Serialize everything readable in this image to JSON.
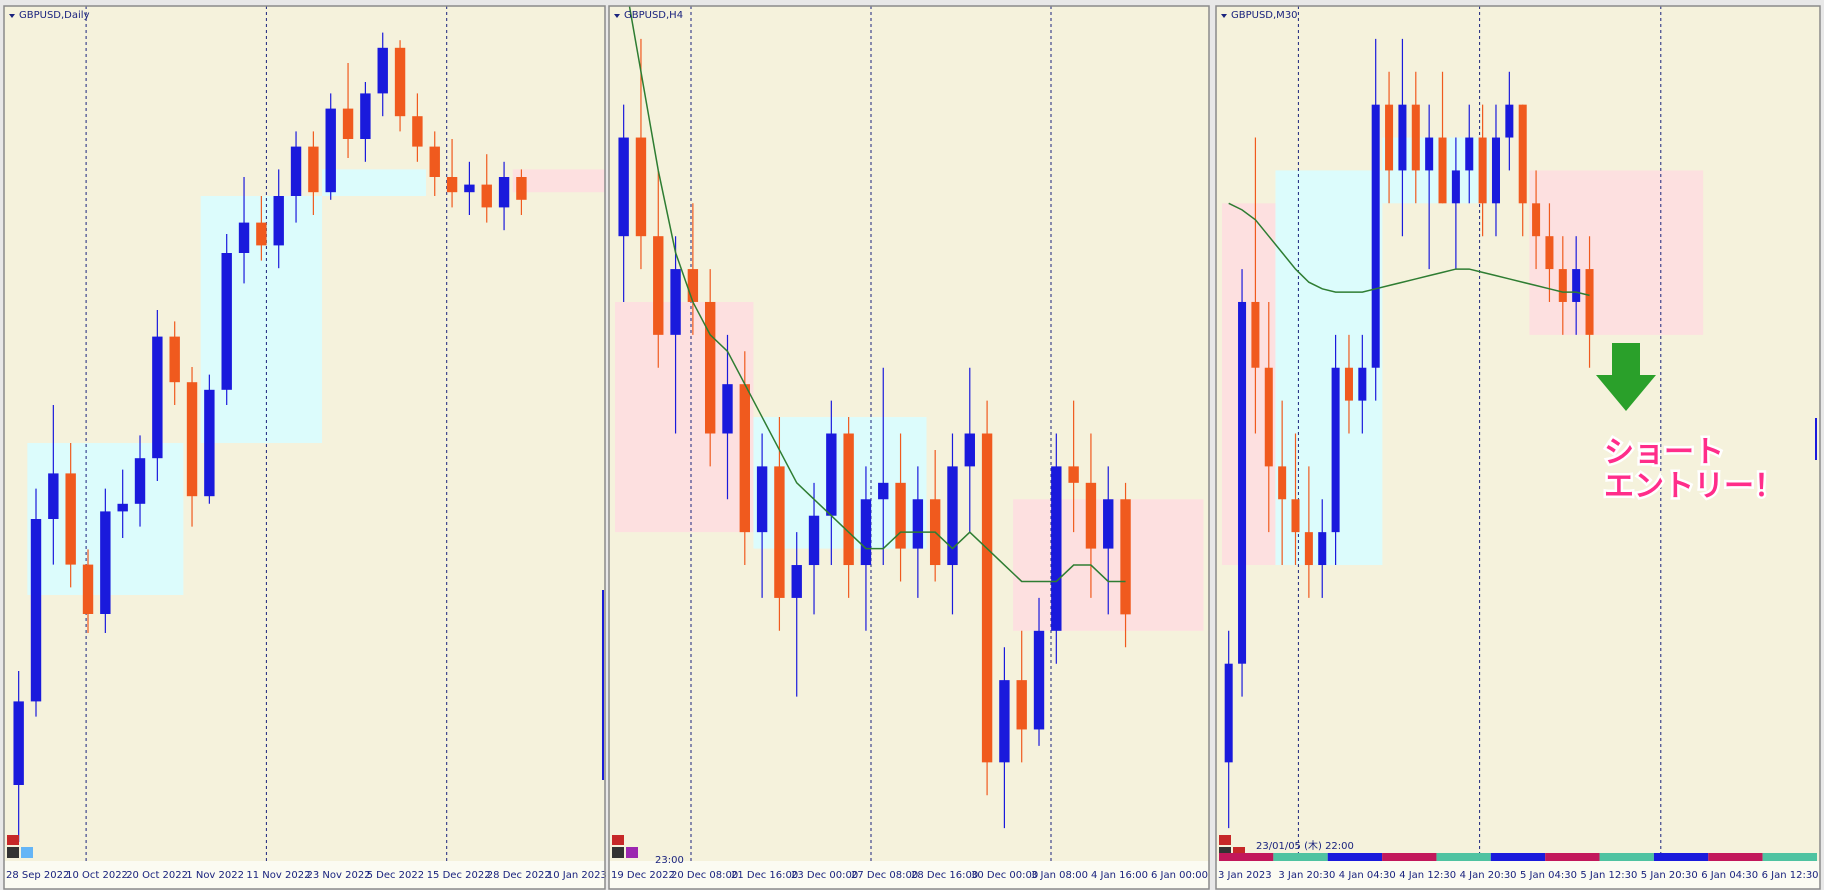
{
  "panels": [
    {
      "title": "GBPUSD,Daily",
      "ylim": [
        1.03,
        1.255
      ],
      "xlabels": [
        "28 Sep 2022",
        "10 Oct 2022",
        "20 Oct 2022",
        "1 Nov 2022",
        "11 Nov 2022",
        "23 Nov 2022",
        "5 Dec 2022",
        "15 Dec 2022",
        "28 Dec 2022",
        "10 Jan 2023"
      ],
      "candles": [
        [
          1.05,
          1.08,
          1.035,
          1.072
        ],
        [
          1.072,
          1.128,
          1.068,
          1.12
        ],
        [
          1.12,
          1.15,
          1.108,
          1.132
        ],
        [
          1.132,
          1.14,
          1.102,
          1.108
        ],
        [
          1.108,
          1.112,
          1.09,
          1.095
        ],
        [
          1.095,
          1.128,
          1.09,
          1.122
        ],
        [
          1.122,
          1.133,
          1.115,
          1.124
        ],
        [
          1.124,
          1.142,
          1.118,
          1.136
        ],
        [
          1.136,
          1.175,
          1.13,
          1.168
        ],
        [
          1.168,
          1.172,
          1.15,
          1.156
        ],
        [
          1.156,
          1.16,
          1.118,
          1.126
        ],
        [
          1.126,
          1.158,
          1.124,
          1.154
        ],
        [
          1.154,
          1.195,
          1.15,
          1.19
        ],
        [
          1.19,
          1.21,
          1.182,
          1.198
        ],
        [
          1.198,
          1.205,
          1.188,
          1.192
        ],
        [
          1.192,
          1.212,
          1.186,
          1.205
        ],
        [
          1.205,
          1.222,
          1.198,
          1.218
        ],
        [
          1.218,
          1.222,
          1.2,
          1.206
        ],
        [
          1.206,
          1.232,
          1.204,
          1.228
        ],
        [
          1.228,
          1.24,
          1.215,
          1.22
        ],
        [
          1.22,
          1.235,
          1.214,
          1.232
        ],
        [
          1.232,
          1.248,
          1.226,
          1.244
        ],
        [
          1.244,
          1.246,
          1.222,
          1.226
        ],
        [
          1.226,
          1.232,
          1.214,
          1.218
        ],
        [
          1.218,
          1.222,
          1.205,
          1.21
        ],
        [
          1.21,
          1.22,
          1.202,
          1.206
        ],
        [
          1.206,
          1.214,
          1.2,
          1.208
        ],
        [
          1.208,
          1.216,
          1.198,
          1.202
        ],
        [
          1.202,
          1.214,
          1.196,
          1.21
        ],
        [
          1.21,
          1.212,
          1.2,
          1.204
        ]
      ],
      "zones": [
        {
          "from": 1,
          "to": 9,
          "low": 1.1,
          "high": 1.14,
          "color": "#dcfcfc"
        },
        {
          "from": 11,
          "to": 17,
          "low": 1.14,
          "high": 1.205,
          "color": "#dcfcfc"
        },
        {
          "from": 18,
          "to": 23,
          "low": 1.205,
          "high": 1.212,
          "color": "#dcfcfc"
        },
        {
          "from": 29,
          "to": 34,
          "low": 1.206,
          "high": 1.212,
          "color": "#fde0e0"
        }
      ]
    },
    {
      "title": "GBPUSD,H4",
      "ylim": [
        1.18,
        1.232
      ],
      "time": "23:00",
      "xlabels": [
        "19 Dec 2022",
        "20 Dec 08:00",
        "21 Dec 16:00",
        "23 Dec 00:00",
        "27 Dec 08:00",
        "28 Dec 16:00",
        "30 Dec 00:00",
        "3 Jan 08:00",
        "4 Jan 16:00",
        "6 Jan 00:00"
      ],
      "candles": [
        [
          1.218,
          1.226,
          1.214,
          1.224
        ],
        [
          1.224,
          1.23,
          1.216,
          1.218
        ],
        [
          1.218,
          1.222,
          1.21,
          1.212
        ],
        [
          1.212,
          1.218,
          1.206,
          1.216
        ],
        [
          1.216,
          1.22,
          1.212,
          1.214
        ],
        [
          1.214,
          1.216,
          1.204,
          1.206
        ],
        [
          1.206,
          1.212,
          1.202,
          1.209
        ],
        [
          1.209,
          1.211,
          1.198,
          1.2
        ],
        [
          1.2,
          1.206,
          1.196,
          1.204
        ],
        [
          1.204,
          1.207,
          1.194,
          1.196
        ],
        [
          1.196,
          1.2,
          1.19,
          1.198
        ],
        [
          1.198,
          1.203,
          1.195,
          1.201
        ],
        [
          1.201,
          1.208,
          1.198,
          1.206
        ],
        [
          1.206,
          1.207,
          1.196,
          1.198
        ],
        [
          1.198,
          1.204,
          1.194,
          1.202
        ],
        [
          1.202,
          1.21,
          1.198,
          1.203
        ],
        [
          1.203,
          1.206,
          1.197,
          1.199
        ],
        [
          1.199,
          1.204,
          1.196,
          1.202
        ],
        [
          1.202,
          1.205,
          1.197,
          1.198
        ],
        [
          1.198,
          1.206,
          1.195,
          1.204
        ],
        [
          1.204,
          1.21,
          1.2,
          1.206
        ],
        [
          1.206,
          1.208,
          1.184,
          1.186
        ],
        [
          1.186,
          1.193,
          1.182,
          1.191
        ],
        [
          1.191,
          1.194,
          1.186,
          1.188
        ],
        [
          1.188,
          1.196,
          1.187,
          1.194
        ],
        [
          1.194,
          1.206,
          1.192,
          1.204
        ],
        [
          1.204,
          1.208,
          1.2,
          1.203
        ],
        [
          1.203,
          1.206,
          1.196,
          1.199
        ],
        [
          1.199,
          1.204,
          1.195,
          1.202
        ],
        [
          1.202,
          1.203,
          1.193,
          1.195
        ]
      ],
      "ma": [
        1.234,
        1.228,
        1.222,
        1.217,
        1.214,
        1.212,
        1.211,
        1.209,
        1.207,
        1.205,
        1.203,
        1.202,
        1.201,
        1.2,
        1.199,
        1.199,
        1.2,
        1.2,
        1.2,
        1.199,
        1.2,
        1.199,
        1.198,
        1.197,
        1.197,
        1.197,
        1.198,
        1.198,
        1.197,
        1.197
      ],
      "zones": [
        {
          "from": 0,
          "to": 7,
          "low": 1.2,
          "high": 1.214,
          "color": "#fde0e0"
        },
        {
          "from": 8,
          "to": 17,
          "low": 1.199,
          "high": 1.207,
          "color": "#dcfcfc"
        },
        {
          "from": 23,
          "to": 33,
          "low": 1.194,
          "high": 1.202,
          "color": "#fde0e0"
        }
      ]
    },
    {
      "title": "GBPUSD,M30",
      "ylim": [
        1.187,
        1.213
      ],
      "time": "23/01/05 (木) 22:00",
      "annotation": [
        "ショート",
        "エントリー！"
      ],
      "xlabels": [
        "3 Jan 2023",
        "3 Jan 20:30",
        "4 Jan 04:30",
        "4 Jan 12:30",
        "4 Jan 20:30",
        "5 Jan 04:30",
        "5 Jan 12:30",
        "5 Jan 20:30",
        "6 Jan 04:30",
        "6 Jan 12:30"
      ],
      "candles": [
        [
          1.19,
          1.194,
          1.188,
          1.193
        ],
        [
          1.193,
          1.205,
          1.192,
          1.204
        ],
        [
          1.204,
          1.209,
          1.2,
          1.202
        ],
        [
          1.202,
          1.204,
          1.197,
          1.199
        ],
        [
          1.199,
          1.201,
          1.196,
          1.198
        ],
        [
          1.198,
          1.2,
          1.196,
          1.197
        ],
        [
          1.197,
          1.199,
          1.195,
          1.196
        ],
        [
          1.196,
          1.198,
          1.195,
          1.197
        ],
        [
          1.197,
          1.203,
          1.196,
          1.202
        ],
        [
          1.202,
          1.203,
          1.2,
          1.201
        ],
        [
          1.201,
          1.203,
          1.2,
          1.202
        ],
        [
          1.202,
          1.212,
          1.201,
          1.21
        ],
        [
          1.21,
          1.211,
          1.207,
          1.208
        ],
        [
          1.208,
          1.212,
          1.206,
          1.21
        ],
        [
          1.21,
          1.211,
          1.207,
          1.208
        ],
        [
          1.208,
          1.21,
          1.205,
          1.209
        ],
        [
          1.209,
          1.211,
          1.207,
          1.207
        ],
        [
          1.207,
          1.209,
          1.205,
          1.208
        ],
        [
          1.208,
          1.21,
          1.207,
          1.209
        ],
        [
          1.209,
          1.21,
          1.206,
          1.207
        ],
        [
          1.207,
          1.21,
          1.206,
          1.209
        ],
        [
          1.209,
          1.211,
          1.208,
          1.21
        ],
        [
          1.21,
          1.21,
          1.206,
          1.207
        ],
        [
          1.207,
          1.208,
          1.205,
          1.206
        ],
        [
          1.206,
          1.207,
          1.204,
          1.205
        ],
        [
          1.205,
          1.206,
          1.203,
          1.204
        ],
        [
          1.204,
          1.206,
          1.203,
          1.205
        ],
        [
          1.205,
          1.206,
          1.202,
          1.203
        ]
      ],
      "ma": [
        1.207,
        1.2068,
        1.2065,
        1.206,
        1.2055,
        1.205,
        1.2046,
        1.2044,
        1.2043,
        1.2043,
        1.2043,
        1.2044,
        1.2045,
        1.2046,
        1.2047,
        1.2048,
        1.2049,
        1.205,
        1.205,
        1.2049,
        1.2048,
        1.2047,
        1.2046,
        1.2045,
        1.2044,
        1.2043,
        1.2043,
        1.2042
      ],
      "zones": [
        {
          "from": 0,
          "to": 3,
          "low": 1.196,
          "high": 1.207,
          "color": "#fde0e0"
        },
        {
          "from": 4,
          "to": 11,
          "low": 1.196,
          "high": 1.208,
          "color": "#dcfcfc"
        },
        {
          "from": 12,
          "to": 19,
          "low": 1.207,
          "high": 1.209,
          "color": "#dcfcfc"
        },
        {
          "from": 23,
          "to": 35,
          "low": 1.203,
          "high": 1.208,
          "color": "#fde0e0"
        }
      ]
    }
  ]
}
